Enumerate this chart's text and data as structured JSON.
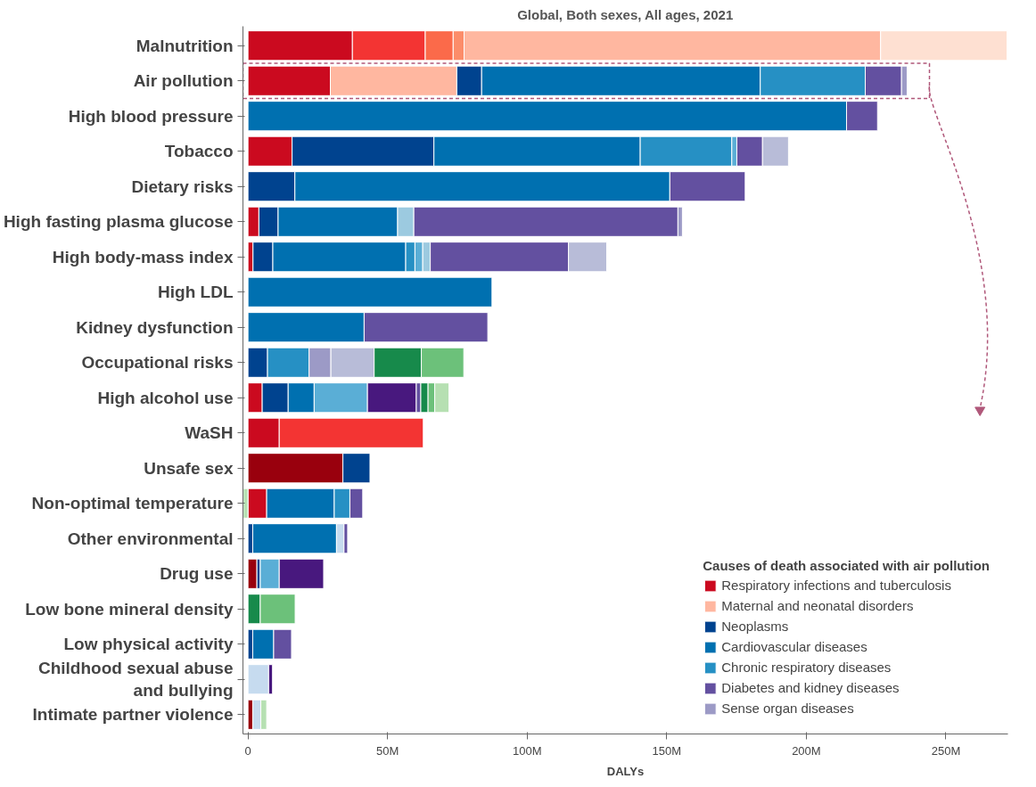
{
  "chart_data": {
    "type": "bar",
    "orientation": "horizontal",
    "stacked": true,
    "title": "Global, Both sexes, All ages, 2021",
    "xlabel": "DALYs",
    "legend_title": "Causes of death associated with air pollution",
    "legend": "bottom right",
    "grid": false,
    "categories": [
      "Malnutrition",
      "Air pollution",
      "High blood pressure",
      "Tobacco",
      "Dietary risks",
      "High fasting plasma glucose",
      "High body-mass index",
      "High LDL",
      "Kidney dysfunction",
      "Occupational risks",
      "High alcohol use",
      "WaSH",
      "Unsafe sex",
      "Non-optimal temperature",
      "Other environmental",
      "Drug use",
      "Low bone mineral density",
      "Low physical activity",
      "Childhood sexual abuse and bullying",
      "Intimate partner violence"
    ],
    "xlim": [
      -1.8,
      272.2
    ],
    "xticks": [
      {
        "value": 0,
        "label": "0"
      },
      {
        "value": 50,
        "label": "50M"
      },
      {
        "value": 100,
        "label": "100M"
      },
      {
        "value": 150,
        "label": "150M"
      },
      {
        "value": 200,
        "label": "200M"
      },
      {
        "value": 250,
        "label": "250M"
      }
    ],
    "series": [
      {
        "color": "#99000d",
        "values": [
          null,
          null,
          null,
          null,
          null,
          null,
          null,
          null,
          null,
          null,
          null,
          null,
          34.0,
          null,
          null,
          3.2,
          null,
          null,
          null,
          1.7
        ]
      },
      {
        "name": "Respiratory infections and tuberculosis",
        "color": "#cb0a1f",
        "values": [
          37.4,
          29.5,
          null,
          15.8,
          null,
          3.9,
          1.8,
          null,
          null,
          null,
          5.1,
          11.2,
          null,
          6.7,
          null,
          null,
          null,
          null,
          null,
          null
        ]
      },
      {
        "color": "#f33433",
        "values": [
          26.1,
          null,
          null,
          null,
          null,
          null,
          null,
          null,
          null,
          null,
          null,
          51.6,
          null,
          null,
          null,
          null,
          null,
          null,
          null,
          null
        ]
      },
      {
        "color": "#fb6a4a",
        "values": [
          10.0,
          null,
          null,
          null,
          null,
          null,
          null,
          null,
          null,
          null,
          null,
          null,
          null,
          null,
          null,
          null,
          null,
          null,
          null,
          null
        ]
      },
      {
        "color": "#fc8d6a",
        "values": [
          3.9,
          null,
          null,
          null,
          null,
          null,
          null,
          null,
          null,
          null,
          null,
          null,
          null,
          null,
          null,
          null,
          null,
          null,
          null,
          null
        ]
      },
      {
        "name": "Maternal and neonatal disorders",
        "color": "#ffb7a0",
        "values": [
          149.2,
          45.3,
          null,
          null,
          null,
          null,
          null,
          null,
          null,
          null,
          null,
          null,
          null,
          null,
          null,
          null,
          null,
          null,
          null,
          null
        ]
      },
      {
        "color": "#fee0d2",
        "values": [
          45.3,
          null,
          null,
          null,
          null,
          null,
          null,
          null,
          null,
          null,
          null,
          null,
          null,
          null,
          null,
          null,
          null,
          null,
          null,
          null
        ]
      },
      {
        "name": "Neoplasms",
        "color": "#00438f",
        "values": [
          null,
          8.9,
          null,
          50.8,
          16.8,
          6.9,
          7.1,
          null,
          null,
          7.0,
          9.3,
          null,
          9.7,
          null,
          1.7,
          1.2,
          null,
          1.7,
          null,
          null
        ]
      },
      {
        "name": "Cardiovascular diseases",
        "color": "#0070b0",
        "values": [
          null,
          99.8,
          214.4,
          73.9,
          134.3,
          42.8,
          47.6,
          87.4,
          41.6,
          null,
          9.3,
          null,
          null,
          24.2,
          30.0,
          null,
          null,
          7.5,
          null,
          null
        ]
      },
      {
        "name": "Chronic respiratory diseases",
        "color": "#2690c4",
        "values": [
          null,
          37.6,
          null,
          32.8,
          null,
          null,
          3.3,
          null,
          null,
          14.9,
          null,
          null,
          null,
          5.6,
          null,
          null,
          null,
          null,
          null,
          null
        ]
      },
      {
        "color": "#5aaed6",
        "values": [
          null,
          null,
          null,
          1.8,
          null,
          null,
          2.8,
          null,
          null,
          null,
          19.1,
          null,
          null,
          null,
          null,
          6.8,
          null,
          null,
          null,
          null
        ]
      },
      {
        "color": "#9ccae0",
        "values": [
          null,
          null,
          null,
          null,
          null,
          5.8,
          2.7,
          null,
          null,
          null,
          null,
          null,
          null,
          null,
          null,
          null,
          null,
          null,
          null,
          null
        ]
      },
      {
        "color": "#c6dbef",
        "values": [
          null,
          null,
          null,
          null,
          null,
          null,
          null,
          null,
          null,
          null,
          null,
          null,
          null,
          null,
          2.7,
          null,
          null,
          null,
          7.4,
          2.9
        ]
      },
      {
        "color": "#48187e",
        "values": [
          null,
          null,
          null,
          null,
          null,
          null,
          null,
          null,
          null,
          null,
          17.5,
          null,
          null,
          null,
          null,
          15.9,
          null,
          null,
          1.4,
          null
        ]
      },
      {
        "name": "Diabetes and kidney diseases",
        "color": "#6350a0",
        "values": [
          null,
          13.0,
          11.1,
          9.2,
          27.0,
          94.6,
          49.5,
          null,
          44.3,
          null,
          1.6,
          null,
          null,
          4.6,
          1.3,
          null,
          null,
          6.4,
          null,
          null
        ]
      },
      {
        "name": "Sense organ diseases",
        "color": "#9c9ac6",
        "values": [
          null,
          2.0,
          null,
          null,
          null,
          1.6,
          null,
          null,
          null,
          7.8,
          null,
          null,
          null,
          null,
          null,
          null,
          null,
          null,
          null,
          null
        ]
      },
      {
        "color": "#b8bcd8",
        "values": [
          null,
          null,
          null,
          9.3,
          null,
          null,
          13.7,
          null,
          null,
          15.5,
          null,
          null,
          null,
          null,
          null,
          null,
          null,
          null,
          null,
          null
        ]
      },
      {
        "color": "#178a4b",
        "values": [
          null,
          null,
          null,
          null,
          null,
          null,
          null,
          null,
          null,
          16.9,
          2.6,
          null,
          null,
          null,
          null,
          null,
          4.4,
          null,
          null,
          null
        ]
      },
      {
        "color": "#6cc17a",
        "values": [
          null,
          null,
          null,
          null,
          null,
          null,
          null,
          null,
          null,
          15.2,
          2.4,
          null,
          null,
          null,
          null,
          null,
          12.5,
          null,
          null,
          null
        ]
      },
      {
        "color": "#b6e0b2",
        "values": [
          null,
          null,
          null,
          null,
          null,
          null,
          null,
          null,
          null,
          null,
          5.1,
          null,
          null,
          -1.7,
          null,
          null,
          null,
          null,
          null,
          2.1
        ]
      }
    ]
  }
}
